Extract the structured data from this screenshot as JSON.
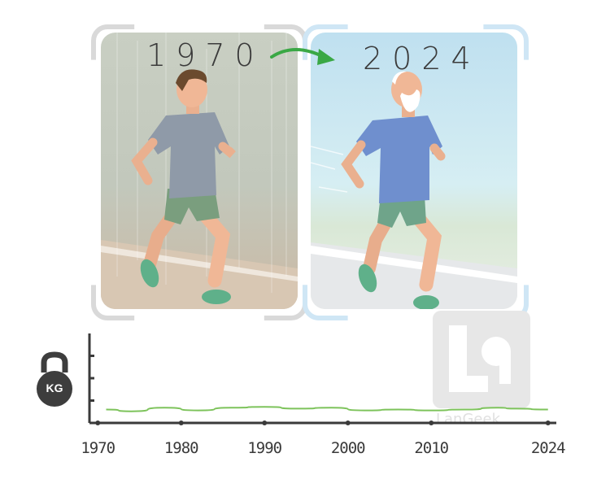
{
  "panels": {
    "left_year": "1970",
    "right_year": "2024"
  },
  "icons": {
    "weight": "kettlebell-icon",
    "weight_label": "KG",
    "arrow": "arrow-right-icon"
  },
  "chart": {
    "x_ticks": [
      "1970",
      "1980",
      "1990",
      "2000",
      "2010",
      "2024"
    ],
    "line_color": "#7dc35b"
  },
  "watermark": {
    "text": "LanGeek"
  },
  "chart_data": {
    "type": "line",
    "title": "",
    "xlabel": "",
    "ylabel": "",
    "x": [
      1971,
      1974,
      1978,
      1982,
      1986,
      1990,
      1994,
      1998,
      2002,
      2006,
      2010,
      2014,
      2018,
      2020,
      2024
    ],
    "values": [
      0.15,
      0.13,
      0.17,
      0.14,
      0.17,
      0.18,
      0.16,
      0.17,
      0.14,
      0.15,
      0.14,
      0.15,
      0.17,
      0.16,
      0.15
    ],
    "xlim": [
      1969,
      2025
    ],
    "ylim": [
      0,
      1
    ],
    "grid": false
  }
}
